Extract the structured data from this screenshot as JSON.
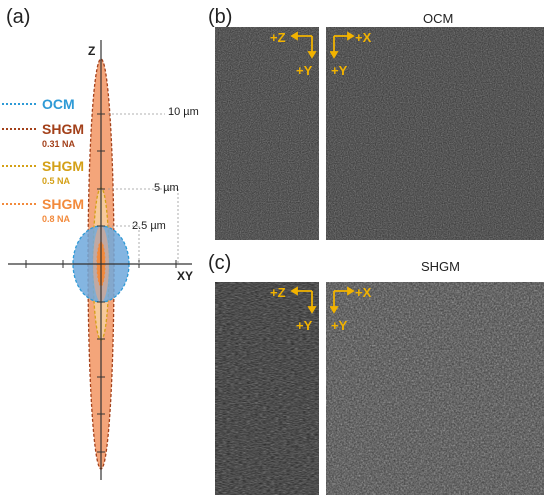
{
  "panels": {
    "a": "(a)",
    "b": "(b)",
    "c": "(c)"
  },
  "diagram": {
    "axis_z": "Z",
    "axis_xy": "XY",
    "scale_10": "10 µm",
    "scale_5": "5 µm",
    "scale_2_5": "2.5 µm",
    "legend": [
      {
        "label": "OCM",
        "sub": "",
        "color": "#2e9ad6"
      },
      {
        "label": "SHGM",
        "sub": "0.31 NA",
        "color": "#a3401a"
      },
      {
        "label": "SHGM",
        "sub": "0.5 NA",
        "color": "#d4a017"
      },
      {
        "label": "SHGM",
        "sub": "0.8 NA",
        "color": "#f28a3c"
      }
    ]
  },
  "images": {
    "ocm_title": "OCM",
    "shgm_title": "SHGM",
    "annot_plus_z": "+Z",
    "annot_plus_x": "+X",
    "annot_plus_y": "+Y"
  },
  "colors": {
    "annotation": "#f2b300",
    "ocm_fill": "#6fa8dc",
    "shgm_fill": "#f4a57a"
  }
}
